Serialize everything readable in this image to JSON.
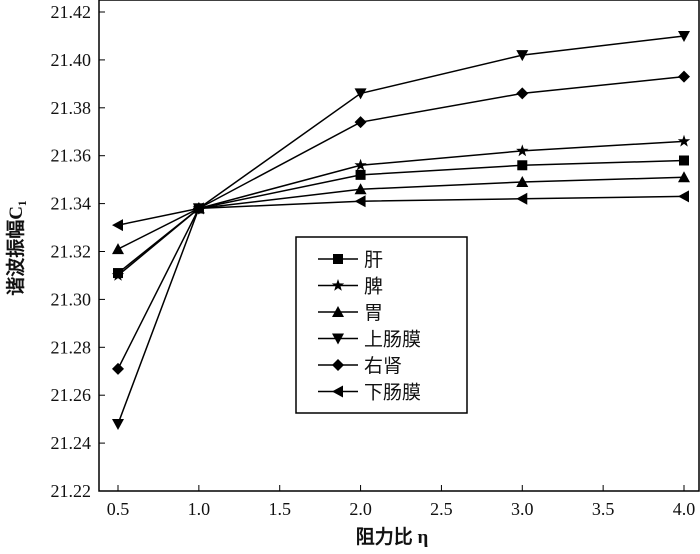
{
  "chart_data": {
    "type": "line",
    "xlabel": "阻力比 η",
    "ylabel": "谐波振幅C₁",
    "xlim": [
      0.5,
      4.0
    ],
    "ylim": [
      21.22,
      21.42
    ],
    "x": [
      0.5,
      1.0,
      2.0,
      3.0,
      4.0
    ],
    "xticks": [
      "0.5",
      "1.0",
      "1.5",
      "2.0",
      "2.5",
      "3.0",
      "3.5",
      "4.0"
    ],
    "yticks": [
      "21.22",
      "21.24",
      "21.26",
      "21.28",
      "21.30",
      "21.32",
      "21.34",
      "21.36",
      "21.38",
      "21.40",
      "21.42"
    ],
    "legend_position": "center",
    "series": [
      {
        "name": "肝",
        "marker": "square",
        "values": [
          21.311,
          21.338,
          21.352,
          21.356,
          21.358
        ]
      },
      {
        "name": "脾",
        "marker": "star",
        "values": [
          21.31,
          21.338,
          21.356,
          21.362,
          21.366
        ]
      },
      {
        "name": "胃",
        "marker": "triangle-up",
        "values": [
          21.321,
          21.338,
          21.346,
          21.349,
          21.351
        ]
      },
      {
        "name": "上肠膜",
        "marker": "triangle-down",
        "values": [
          21.248,
          21.338,
          21.386,
          21.402,
          21.41
        ]
      },
      {
        "name": "右肾",
        "marker": "diamond",
        "values": [
          21.271,
          21.338,
          21.374,
          21.386,
          21.393
        ]
      },
      {
        "name": "下肠膜",
        "marker": "triangle-left",
        "values": [
          21.331,
          21.338,
          21.341,
          21.342,
          21.343
        ]
      }
    ]
  }
}
